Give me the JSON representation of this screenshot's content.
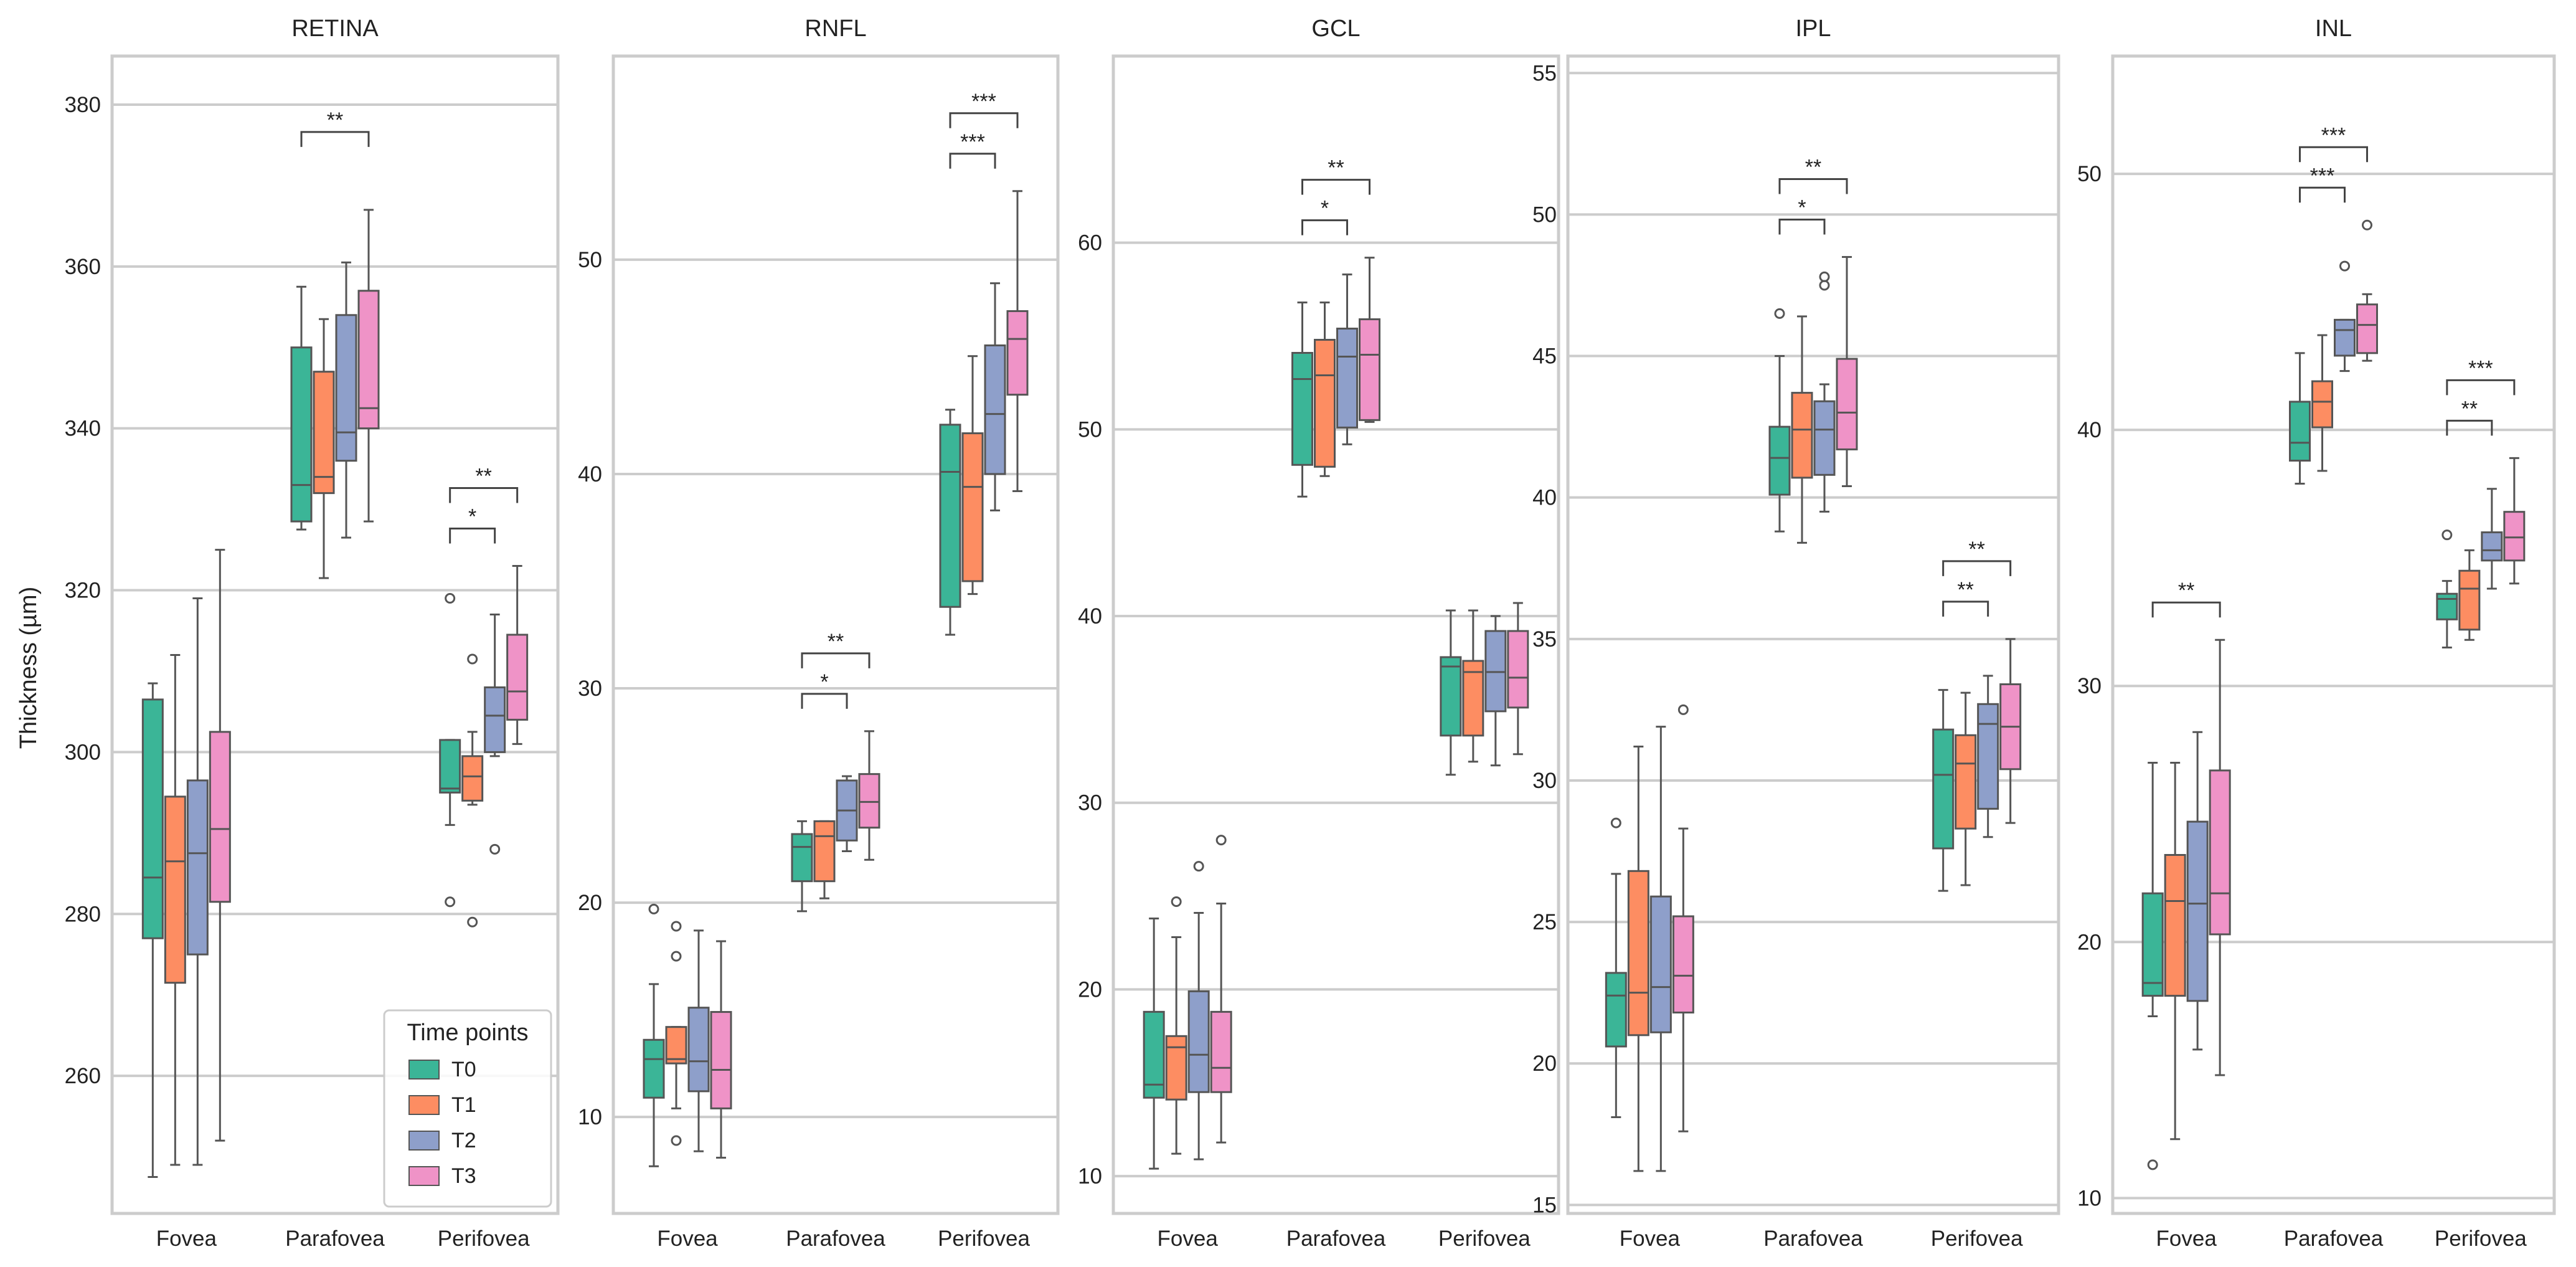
{
  "chart_data": {
    "type": "box",
    "ylabel": "Thickness (µm)",
    "categories": [
      "Fovea",
      "Parafovea",
      "Perifovea"
    ],
    "series_names": [
      "T0",
      "T1",
      "T2",
      "T3"
    ],
    "series_colors": [
      "#3bb597",
      "#fd8d62",
      "#8e9fca",
      "#ef93c7"
    ],
    "legend": {
      "title": "Time points",
      "entries": [
        "T0",
        "T1",
        "T2",
        "T3"
      ],
      "placement": "lower-right of first panel"
    },
    "box_stat_order": [
      "whisker_low",
      "q1",
      "median",
      "q3",
      "whisker_high"
    ],
    "panels": [
      {
        "title": "RETINA",
        "ylim": [
          243,
          386
        ],
        "yticks": [
          260,
          280,
          300,
          320,
          340,
          360,
          380
        ],
        "ytick_labels": [
          "260",
          "280",
          "300",
          "320",
          "340",
          "360",
          "380"
        ],
        "boxes": {
          "Fovea": [
            [
              247.5,
              277,
              284.5,
              306.5,
              308.5
            ],
            [
              249,
              271.5,
              286.5,
              294.5,
              312
            ],
            [
              249,
              275,
              287.5,
              296.5,
              319
            ],
            [
              252,
              281.5,
              290.5,
              302.5,
              325
            ]
          ],
          "Parafovea": [
            [
              327.5,
              328.5,
              333,
              350,
              357.5
            ],
            [
              321.5,
              332,
              334,
              347,
              353.5
            ],
            [
              326.5,
              336,
              339.5,
              354,
              360.5
            ],
            [
              328.5,
              340,
              342.5,
              357,
              367
            ]
          ],
          "Perifovea": [
            [
              291,
              295,
              295.5,
              301.5,
              301.5
            ],
            [
              293.5,
              294,
              297,
              299.5,
              302.5
            ],
            [
              299.5,
              300,
              304.5,
              308,
              317
            ],
            [
              301,
              304,
              307.5,
              314.5,
              323
            ]
          ]
        },
        "outliers": {
          "Fovea": [
            [],
            [],
            [],
            []
          ],
          "Parafovea": [
            [],
            [],
            [],
            []
          ],
          "Perifovea": [
            [
              319,
              281.5
            ],
            [
              311.5,
              279
            ],
            [
              288
            ],
            []
          ]
        },
        "significance": [
          {
            "category": "Parafovea",
            "from": "T0",
            "to": "T3",
            "level": 1,
            "label": "**"
          },
          {
            "category": "Perifovea",
            "from": "T0",
            "to": "T2",
            "level": 0,
            "label": "*"
          },
          {
            "category": "Perifovea",
            "from": "T0",
            "to": "T3",
            "level": 1,
            "label": "**"
          }
        ]
      },
      {
        "title": "RNFL",
        "ylim": [
          5.5,
          59.5
        ],
        "yticks": [
          10,
          20,
          30,
          40,
          50
        ],
        "ytick_labels": [
          "10",
          "20",
          "30",
          "40",
          "50"
        ],
        "boxes": {
          "Fovea": [
            [
              7.7,
              10.9,
              12.7,
              13.6,
              16.2
            ],
            [
              10.4,
              12.5,
              12.7,
              14.2,
              14.2
            ],
            [
              8.4,
              11.2,
              12.6,
              15.1,
              18.7
            ],
            [
              8.1,
              10.4,
              12.2,
              14.9,
              18.2
            ]
          ],
          "Parafovea": [
            [
              19.6,
              21,
              22.6,
              23.2,
              23.8
            ],
            [
              20.2,
              21,
              23.1,
              23.8,
              23.8
            ],
            [
              22.4,
              22.9,
              24.3,
              25.7,
              25.9
            ],
            [
              22,
              23.5,
              24.7,
              26,
              28
            ]
          ],
          "Perifovea": [
            [
              32.5,
              33.8,
              40.1,
              42.3,
              43
            ],
            [
              34.4,
              35,
              39.4,
              41.9,
              45.5
            ],
            [
              38.3,
              40,
              42.8,
              46,
              48.9
            ],
            [
              39.2,
              43.7,
              46.3,
              47.6,
              53.2
            ]
          ]
        },
        "outliers": {
          "Fovea": [
            [
              19.7
            ],
            [
              18.9,
              17.5,
              8.9
            ],
            [],
            []
          ],
          "Parafovea": [
            [],
            [],
            [],
            []
          ],
          "Perifovea": [
            [],
            [],
            [],
            []
          ]
        },
        "significance": [
          {
            "category": "Parafovea",
            "from": "T0",
            "to": "T2",
            "level": 0,
            "label": "*"
          },
          {
            "category": "Parafovea",
            "from": "T0",
            "to": "T3",
            "level": 1,
            "label": "**"
          },
          {
            "category": "Perifovea",
            "from": "T0",
            "to": "T2",
            "level": 0,
            "label": "***"
          },
          {
            "category": "Perifovea",
            "from": "T0",
            "to": "T3",
            "level": 1,
            "label": "***"
          }
        ]
      },
      {
        "title": "GCL",
        "ylim": [
          8,
          70
        ],
        "yticks": [
          10,
          20,
          30,
          40,
          50,
          60
        ],
        "ytick_labels": [
          "10",
          "20",
          "30",
          "40",
          "50",
          "60"
        ],
        "boxes": {
          "Fovea": [
            [
              10.4,
              14.2,
              14.9,
              18.8,
              23.8
            ],
            [
              11.2,
              14.1,
              16.9,
              17.5,
              22.8
            ],
            [
              10.9,
              14.5,
              16.5,
              19.9,
              24.1
            ],
            [
              11.8,
              14.5,
              15.8,
              18.8,
              24.6
            ]
          ],
          "Parafovea": [
            [
              46.4,
              48.1,
              52.7,
              54.1,
              56.8
            ],
            [
              47.5,
              48,
              52.9,
              54.8,
              56.8
            ],
            [
              49.2,
              50.1,
              53.9,
              55.4,
              58.3
            ],
            [
              50.4,
              50.5,
              54,
              55.9,
              59.2
            ]
          ],
          "Perifovea": [
            [
              31.5,
              33.6,
              37.3,
              37.8,
              40.3
            ],
            [
              32.2,
              33.6,
              37,
              37.6,
              40.3
            ],
            [
              32,
              34.9,
              37,
              39.2,
              40
            ],
            [
              32.6,
              35.1,
              36.7,
              39.2,
              40.7
            ]
          ]
        },
        "outliers": {
          "Fovea": [
            [],
            [
              24.7
            ],
            [
              26.6
            ],
            [
              28
            ]
          ],
          "Parafovea": [
            [],
            [],
            [],
            []
          ],
          "Perifovea": [
            [],
            [],
            [],
            []
          ]
        },
        "significance": [
          {
            "category": "Parafovea",
            "from": "T0",
            "to": "T2",
            "level": 0,
            "label": "*"
          },
          {
            "category": "Parafovea",
            "from": "T0",
            "to": "T3",
            "level": 1,
            "label": "**"
          }
        ]
      },
      {
        "title": "IPL",
        "ylim": [
          14.7,
          55.6
        ],
        "yticks": [
          15,
          20,
          25,
          30,
          35,
          40,
          45,
          50,
          55
        ],
        "ytick_labels": [
          "15",
          "20",
          "25",
          "30",
          "35",
          "40",
          "45",
          "50",
          "55"
        ],
        "boxes": {
          "Fovea": [
            [
              18.1,
              20.6,
              22.4,
              23.2,
              26.7
            ],
            [
              16.2,
              21,
              22.5,
              26.8,
              31.2
            ],
            [
              16.2,
              21.1,
              22.7,
              25.9,
              31.9
            ],
            [
              17.6,
              21.8,
              23.1,
              25.2,
              28.3
            ]
          ],
          "Parafovea": [
            [
              38.8,
              40.1,
              41.4,
              42.5,
              45
            ],
            [
              38.4,
              40.7,
              42.4,
              43.7,
              46.4
            ],
            [
              39.5,
              40.8,
              42.4,
              43.4,
              44
            ],
            [
              40.4,
              41.7,
              43,
              44.9,
              48.5
            ]
          ],
          "Perifovea": [
            [
              26.1,
              27.6,
              30.2,
              31.8,
              33.2
            ],
            [
              26.3,
              28.3,
              30.6,
              31.6,
              33.1
            ],
            [
              28,
              29,
              32,
              32.7,
              33.7
            ],
            [
              28.5,
              30.4,
              31.9,
              33.4,
              35
            ]
          ],
          "_note": "values in µm"
        },
        "outliers": {
          "Fovea": [
            [
              28.5
            ],
            [],
            [],
            [
              32.5
            ]
          ],
          "Parafovea": [
            [
              46.5
            ],
            [],
            [
              47.8,
              47.5
            ],
            []
          ],
          "Perifovea": [
            [],
            [],
            [],
            []
          ]
        },
        "significance": [
          {
            "category": "Parafovea",
            "from": "T0",
            "to": "T2",
            "level": 0,
            "label": "*"
          },
          {
            "category": "Parafovea",
            "from": "T0",
            "to": "T3",
            "level": 1,
            "label": "**"
          },
          {
            "category": "Perifovea",
            "from": "T0",
            "to": "T2",
            "level": 0,
            "label": "**"
          },
          {
            "category": "Perifovea",
            "from": "T0",
            "to": "T3",
            "level": 1,
            "label": "**"
          }
        ]
      },
      {
        "title": "INL",
        "ylim": [
          9.4,
          54.6
        ],
        "yticks": [
          10,
          20,
          30,
          40,
          50
        ],
        "ytick_labels": [
          "10",
          "20",
          "30",
          "40",
          "50"
        ],
        "boxes": {
          "Fovea": [
            [
              17.1,
              17.9,
              18.4,
              21.9,
              27
            ],
            [
              12.3,
              17.9,
              21.6,
              23.4,
              27
            ],
            [
              15.8,
              17.7,
              21.5,
              24.7,
              28.2
            ],
            [
              14.8,
              20.3,
              21.9,
              26.7,
              31.8
            ]
          ],
          "Parafovea": [
            [
              37.9,
              38.8,
              39.5,
              41.1,
              43
            ],
            [
              38.4,
              40.1,
              41.1,
              41.9,
              43.7
            ],
            [
              42.3,
              42.9,
              43.9,
              44.3,
              44.3
            ],
            [
              42.7,
              43,
              44.1,
              44.9,
              45.3
            ]
          ],
          "Perifovea": [
            [
              31.5,
              32.6,
              33.4,
              33.6,
              34.1
            ],
            [
              31.8,
              32.2,
              33.8,
              34.5,
              35.3
            ],
            [
              33.8,
              34.9,
              35.3,
              36,
              37.7
            ],
            [
              34,
              34.9,
              35.8,
              36.8,
              38.9
            ]
          ]
        },
        "outliers": {
          "Fovea": [
            [
              11.3
            ],
            [],
            [],
            []
          ],
          "Parafovea": [
            [],
            [],
            [
              46.4
            ],
            [
              48
            ]
          ],
          "Perifovea": [
            [
              35.9
            ],
            [],
            [],
            []
          ]
        },
        "significance": [
          {
            "category": "Fovea",
            "from": "T0",
            "to": "T3",
            "level": 0,
            "label": "**"
          },
          {
            "category": "Parafovea",
            "from": "T0",
            "to": "T2",
            "level": 0,
            "label": "***"
          },
          {
            "category": "Parafovea",
            "from": "T0",
            "to": "T3",
            "level": 1,
            "label": "***"
          },
          {
            "category": "Perifovea",
            "from": "T0",
            "to": "T2",
            "level": 0,
            "label": "**"
          },
          {
            "category": "Perifovea",
            "from": "T0",
            "to": "T3",
            "level": 1,
            "label": "***"
          }
        ]
      }
    ]
  }
}
